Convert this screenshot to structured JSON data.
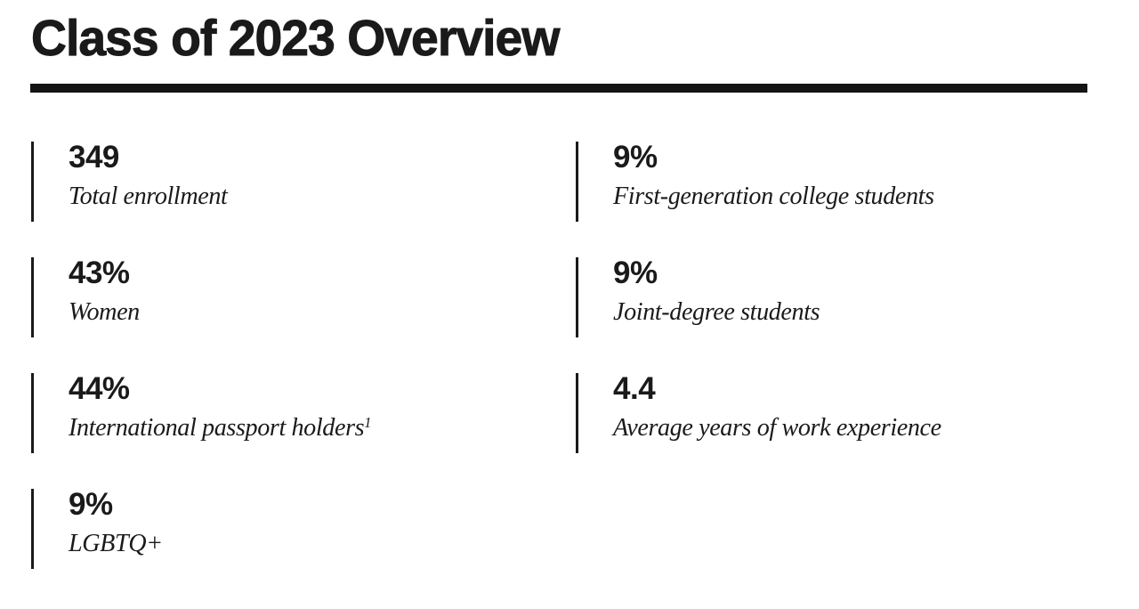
{
  "page": {
    "title": "Class of 2023 Overview"
  },
  "colors": {
    "text": "#1a1a1a",
    "rule": "#141414",
    "background": "#ffffff"
  },
  "stats": {
    "left": [
      {
        "value": "349",
        "label": "Total enrollment",
        "sup": ""
      },
      {
        "value": "43%",
        "label": "Women",
        "sup": ""
      },
      {
        "value": "44%",
        "label": "International passport holders",
        "sup": "1"
      },
      {
        "value": "9%",
        "label": "LGBTQ+",
        "sup": ""
      }
    ],
    "right": [
      {
        "value": "9%",
        "label": "First-generation college students",
        "sup": ""
      },
      {
        "value": "9%",
        "label": "Joint-degree students",
        "sup": ""
      },
      {
        "value": "4.4",
        "label": "Average years of work experience",
        "sup": ""
      }
    ]
  }
}
